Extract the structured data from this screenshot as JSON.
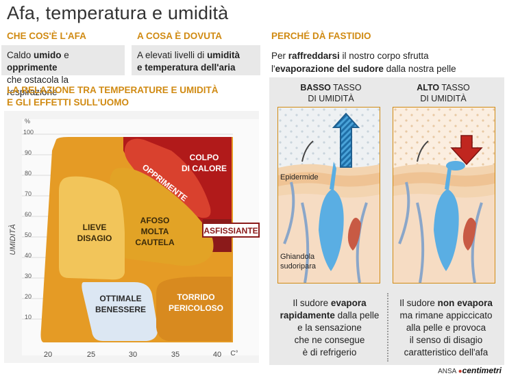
{
  "title": "Afa, temperatura e umidità",
  "sections": {
    "what": {
      "heading": "CHE COS'È L'AFA",
      "p1": "Caldo ",
      "b1": "umido",
      "p2": " e ",
      "b2": "opprimente",
      "line2": "che ostacola la respirazione"
    },
    "cause": {
      "heading": "A COSA È DOVUTA",
      "p1": "A elevati livelli di ",
      "b1": "umidità",
      "b2": "e temperatura dell'aria"
    },
    "why": {
      "heading": "PERCHÉ DÀ FASTIDIO",
      "p1": "Per ",
      "b1": "raffreddarsi",
      "p2": " il nostro corpo sfrutta",
      "p3": "l'",
      "b2": "evaporazione del sudore",
      "p4": " dalla nostra pelle"
    }
  },
  "relation": {
    "heading_line1": "LA RELAZIONE TRA TEMPERATURE E UMIDITÀ",
    "heading_line2": "E GLI EFFETTI SULL'UOMO"
  },
  "chart": {
    "y_axis_label": "UMIDITÀ",
    "y_unit": "%",
    "y_ticks": [
      "100",
      "90",
      "80",
      "70",
      "60",
      "50",
      "40",
      "30",
      "20",
      "10"
    ],
    "x_unit": "C°",
    "x_ticks": [
      "20",
      "25",
      "30",
      "35",
      "40"
    ],
    "zones": {
      "colpo1": "COLPO",
      "colpo2": "DI CALORE",
      "opprimente": "OPPRIMENTE",
      "lieve1": "LIEVE",
      "lieve2": "DISAGIO",
      "afoso1": "AFOSO",
      "afoso2": "MOLTA",
      "afoso3": "CAUTELA",
      "asfissiante": "ASFISSIANTE",
      "ottimale1": "OTTIMALE",
      "ottimale2": "BENESSERE",
      "torrido1": "TORRIDO",
      "torrido2": "PERICOLOSO"
    },
    "colors": {
      "colpo": "#b11a1a",
      "opprimente": "#d9412e",
      "asfissiante": "#8b1a1a",
      "afoso": "#e2a326",
      "lieve": "#f2c55a",
      "ottimale": "#dce7f3",
      "torrido": "#d88a1f",
      "background_orange": "#e59b25"
    }
  },
  "panels": {
    "low": {
      "b": "BASSO",
      "t1": " TASSO",
      "t2": "DI UMIDITÀ"
    },
    "high": {
      "b": "ALTO",
      "t1": " TASSO",
      "t2": "DI UMIDITÀ"
    },
    "labels": {
      "epidermide": "Epidermide",
      "ghiandola1": "Ghiandola",
      "ghiandola2": "sudoripara"
    }
  },
  "bottom": {
    "left": {
      "l1a": "Il sudore ",
      "l1b": "evapora",
      "l2a": "rapidamente",
      "l2b": " dalla pelle",
      "l3": "e la sensazione",
      "l4": "che ne consegue",
      "l5": "è di refrigerio"
    },
    "right": {
      "l1a": "Il sudore ",
      "l1b": "non evapora",
      "l2": "ma rimane appiccicato",
      "l3": "alla pelle e provoca",
      "l4": "il senso di disagio",
      "l5": "caratteristico dell'afa"
    }
  },
  "credits": {
    "ansa": "ANSA",
    "brand": "centimetri"
  }
}
